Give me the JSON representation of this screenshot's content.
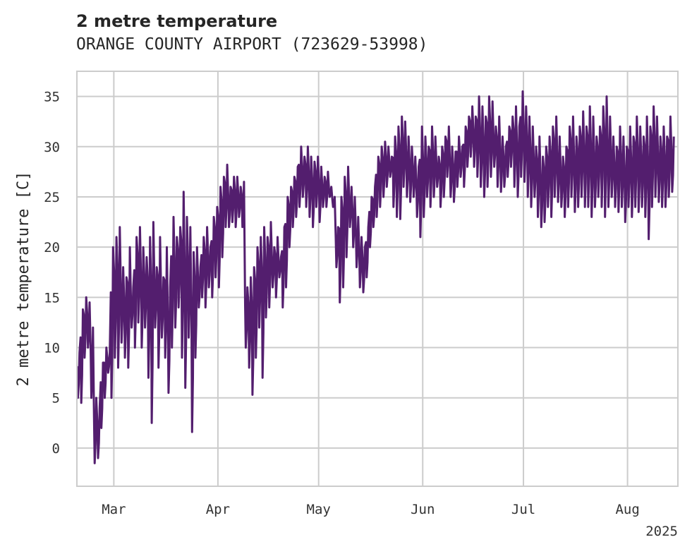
{
  "header": {
    "title": "2 metre temperature",
    "subtitle": "ORANGE COUNTY AIRPORT (723629-53998)"
  },
  "chart_data": {
    "type": "line",
    "title": "2 metre temperature",
    "subtitle": "ORANGE COUNTY AIRPORT (723629-53998)",
    "xlabel": "",
    "ylabel": "2 metre temperature [C]",
    "ylim": [
      -3.8,
      37.5
    ],
    "xlim": [
      "2025-02-18",
      "2025-08-16"
    ],
    "yticks": [
      0,
      5,
      10,
      15,
      20,
      25,
      30,
      35
    ],
    "ytick_labels": [
      "0",
      "5",
      "10",
      "15",
      "20",
      "25",
      "30",
      "35"
    ],
    "xticks": [
      "2025-03-01",
      "2025-04-01",
      "2025-05-01",
      "2025-06-01",
      "2025-07-01",
      "2025-08-01"
    ],
    "xtick_labels": [
      "Mar",
      "Apr",
      "May",
      "Jun",
      "Jul",
      "Aug"
    ],
    "x_offset_label": "2025",
    "grid": true,
    "legend": false,
    "color": "#531e6e",
    "series": [
      {
        "x": [
          "2025-02-18",
          "2025-02-19",
          "2025-02-20",
          "2025-02-21",
          "2025-02-22",
          "2025-02-23",
          "2025-02-24",
          "2025-02-25",
          "2025-02-26",
          "2025-02-27",
          "2025-02-28",
          "2025-03-01",
          "2025-03-02",
          "2025-03-03",
          "2025-03-04",
          "2025-03-05",
          "2025-03-06",
          "2025-03-07",
          "2025-03-08",
          "2025-03-09",
          "2025-03-10",
          "2025-03-11",
          "2025-03-12",
          "2025-03-13",
          "2025-03-14",
          "2025-03-15",
          "2025-03-16",
          "2025-03-17",
          "2025-03-18",
          "2025-03-19",
          "2025-03-20",
          "2025-03-21",
          "2025-03-22",
          "2025-03-23",
          "2025-03-24",
          "2025-03-25",
          "2025-03-26",
          "2025-03-27",
          "2025-03-28",
          "2025-03-29",
          "2025-03-30",
          "2025-03-31",
          "2025-04-01",
          "2025-04-02",
          "2025-04-03",
          "2025-04-04",
          "2025-04-05",
          "2025-04-06",
          "2025-04-07",
          "2025-04-08",
          "2025-04-09",
          "2025-04-10",
          "2025-04-11",
          "2025-04-12",
          "2025-04-13",
          "2025-04-14",
          "2025-04-15",
          "2025-04-16",
          "2025-04-17",
          "2025-04-18",
          "2025-04-19",
          "2025-04-20",
          "2025-04-21",
          "2025-04-22",
          "2025-04-23",
          "2025-04-24",
          "2025-04-25",
          "2025-04-26",
          "2025-04-27",
          "2025-04-28",
          "2025-04-29",
          "2025-04-30",
          "2025-05-01",
          "2025-05-02",
          "2025-05-03",
          "2025-05-04",
          "2025-05-05",
          "2025-05-06",
          "2025-05-07",
          "2025-05-08",
          "2025-05-09",
          "2025-05-10",
          "2025-05-11",
          "2025-05-12",
          "2025-05-13",
          "2025-05-14",
          "2025-05-15",
          "2025-05-16",
          "2025-05-17",
          "2025-05-18",
          "2025-05-19",
          "2025-05-20",
          "2025-05-21",
          "2025-05-22",
          "2025-05-23",
          "2025-05-24",
          "2025-05-25",
          "2025-05-26",
          "2025-05-27",
          "2025-05-28",
          "2025-05-29",
          "2025-05-30",
          "2025-05-31",
          "2025-06-01",
          "2025-06-02",
          "2025-06-03",
          "2025-06-04",
          "2025-06-05",
          "2025-06-06",
          "2025-06-07",
          "2025-06-08",
          "2025-06-09",
          "2025-06-10",
          "2025-06-11",
          "2025-06-12",
          "2025-06-13",
          "2025-06-14",
          "2025-06-15",
          "2025-06-16",
          "2025-06-17",
          "2025-06-18",
          "2025-06-19",
          "2025-06-20",
          "2025-06-21",
          "2025-06-22",
          "2025-06-23",
          "2025-06-24",
          "2025-06-25",
          "2025-06-26",
          "2025-06-27",
          "2025-06-28",
          "2025-06-29",
          "2025-06-30",
          "2025-07-01",
          "2025-07-02",
          "2025-07-03",
          "2025-07-04",
          "2025-07-05",
          "2025-07-06",
          "2025-07-07",
          "2025-07-08",
          "2025-07-09",
          "2025-07-10",
          "2025-07-11",
          "2025-07-12",
          "2025-07-13",
          "2025-07-14",
          "2025-07-15",
          "2025-07-16",
          "2025-07-17",
          "2025-07-18",
          "2025-07-19",
          "2025-07-20",
          "2025-07-21",
          "2025-07-22",
          "2025-07-23",
          "2025-07-24",
          "2025-07-25",
          "2025-07-26",
          "2025-07-27",
          "2025-07-28",
          "2025-07-29",
          "2025-07-30",
          "2025-07-31",
          "2025-08-01",
          "2025-08-02",
          "2025-08-03",
          "2025-08-04",
          "2025-08-05",
          "2025-08-06",
          "2025-08-07",
          "2025-08-08",
          "2025-08-09",
          "2025-08-10",
          "2025-08-11",
          "2025-08-12",
          "2025-08-13",
          "2025-08-14",
          "2025-08-15"
        ],
        "min": [
          5.0,
          4.5,
          9.0,
          10.0,
          5.0,
          -1.5,
          -1.0,
          2.0,
          5.0,
          7.5,
          5.0,
          9.0,
          8.0,
          10.5,
          9.0,
          8.0,
          12.0,
          10.0,
          12.5,
          10.0,
          12.0,
          7.0,
          2.5,
          12.0,
          8.0,
          11.0,
          9.0,
          5.5,
          10.0,
          12.0,
          14.0,
          9.0,
          6.0,
          11.0,
          1.6,
          9.0,
          14.0,
          15.0,
          14.0,
          16.0,
          15.0,
          17.0,
          16.0,
          19.0,
          22.0,
          22.0,
          22.5,
          22.0,
          23.0,
          22.0,
          10.0,
          8.0,
          5.3,
          9.0,
          12.0,
          7.0,
          13.0,
          14.0,
          16.0,
          15.0,
          17.0,
          14.0,
          16.0,
          20.0,
          22.0,
          23.0,
          24.0,
          25.0,
          24.0,
          23.0,
          22.0,
          24.0,
          22.5,
          24.0,
          24.0,
          25.0,
          24.0,
          18.0,
          14.5,
          16.0,
          19.0,
          22.0,
          20.0,
          18.0,
          16.0,
          15.5,
          17.0,
          20.0,
          22.0,
          23.0,
          24.0,
          25.0,
          26.0,
          27.0,
          24.0,
          23.0,
          22.8,
          26.0,
          25.0,
          24.5,
          25.0,
          23.0,
          21.0,
          23.0,
          25.0,
          24.0,
          25.0,
          26.0,
          24.0,
          25.0,
          27.0,
          25.0,
          24.5,
          26.0,
          27.0,
          26.0,
          28.0,
          29.0,
          28.0,
          27.0,
          26.0,
          25.0,
          26.0,
          27.0,
          28.0,
          26.0,
          25.5,
          26.0,
          27.0,
          28.0,
          26.0,
          25.0,
          27.0,
          26.5,
          25.0,
          24.0,
          25.0,
          23.0,
          22.0,
          22.5,
          24.0,
          23.0,
          25.0,
          24.5,
          24.0,
          23.0,
          24.0,
          25.0,
          23.5,
          24.0,
          25.0,
          24.0,
          24.0,
          23.0,
          24.0,
          25.0,
          24.0,
          23.0,
          24.0,
          25.0,
          24.0,
          23.5,
          24.0,
          22.5,
          24.0,
          23.0,
          24.0,
          23.5,
          24.0,
          23.0,
          20.8,
          24.0,
          25.0,
          24.5,
          24.0,
          24.0,
          25.0,
          25.5
        ],
        "max": [
          9.5,
          13.8,
          15.0,
          14.5,
          12.0,
          5.0,
          4.0,
          8.5,
          10.0,
          9.5,
          20.0,
          21.0,
          22.0,
          18.0,
          17.0,
          20.0,
          16.0,
          21.0,
          22.0,
          20.0,
          19.0,
          21.0,
          22.5,
          18.0,
          21.0,
          17.0,
          20.0,
          16.0,
          23.0,
          21.0,
          22.0,
          25.5,
          23.0,
          22.0,
          19.5,
          20.0,
          18.0,
          21.0,
          22.0,
          20.0,
          23.0,
          24.0,
          26.0,
          27.0,
          28.2,
          26.0,
          27.0,
          27.0,
          26.0,
          26.5,
          16.0,
          17.0,
          18.0,
          20.0,
          21.0,
          22.0,
          21.0,
          22.5,
          20.0,
          21.0,
          19.0,
          22.0,
          25.0,
          26.0,
          27.0,
          28.0,
          30.0,
          29.0,
          30.0,
          29.0,
          28.5,
          29.0,
          28.0,
          27.0,
          27.5,
          26.0,
          25.0,
          22.0,
          25.0,
          27.0,
          28.0,
          26.0,
          25.0,
          23.0,
          21.0,
          20.0,
          22.0,
          25.0,
          26.0,
          29.0,
          30.0,
          30.5,
          30.0,
          29.0,
          31.0,
          32.0,
          33.0,
          32.5,
          31.0,
          30.0,
          29.0,
          28.0,
          32.0,
          31.0,
          30.0,
          32.0,
          31.0,
          29.0,
          30.0,
          31.0,
          32.0,
          30.0,
          29.5,
          31.0,
          30.0,
          32.0,
          33.0,
          34.0,
          33.0,
          35.0,
          34.0,
          33.0,
          35.0,
          34.5,
          32.0,
          33.0,
          31.0,
          30.0,
          32.0,
          33.0,
          34.0,
          32.0,
          35.5,
          34.0,
          33.0,
          32.0,
          30.0,
          31.0,
          29.0,
          30.0,
          31.0,
          32.0,
          33.0,
          31.0,
          29.0,
          30.0,
          32.0,
          33.0,
          31.0,
          32.0,
          33.5,
          32.0,
          34.0,
          33.0,
          31.0,
          32.0,
          34.0,
          35.0,
          33.0,
          31.0,
          30.0,
          32.0,
          31.0,
          30.0,
          32.0,
          31.0,
          33.0,
          32.0,
          31.0,
          33.0,
          32.0,
          34.0,
          33.0,
          31.0,
          32.0,
          31.0,
          33.0,
          31.0
        ]
      }
    ]
  }
}
